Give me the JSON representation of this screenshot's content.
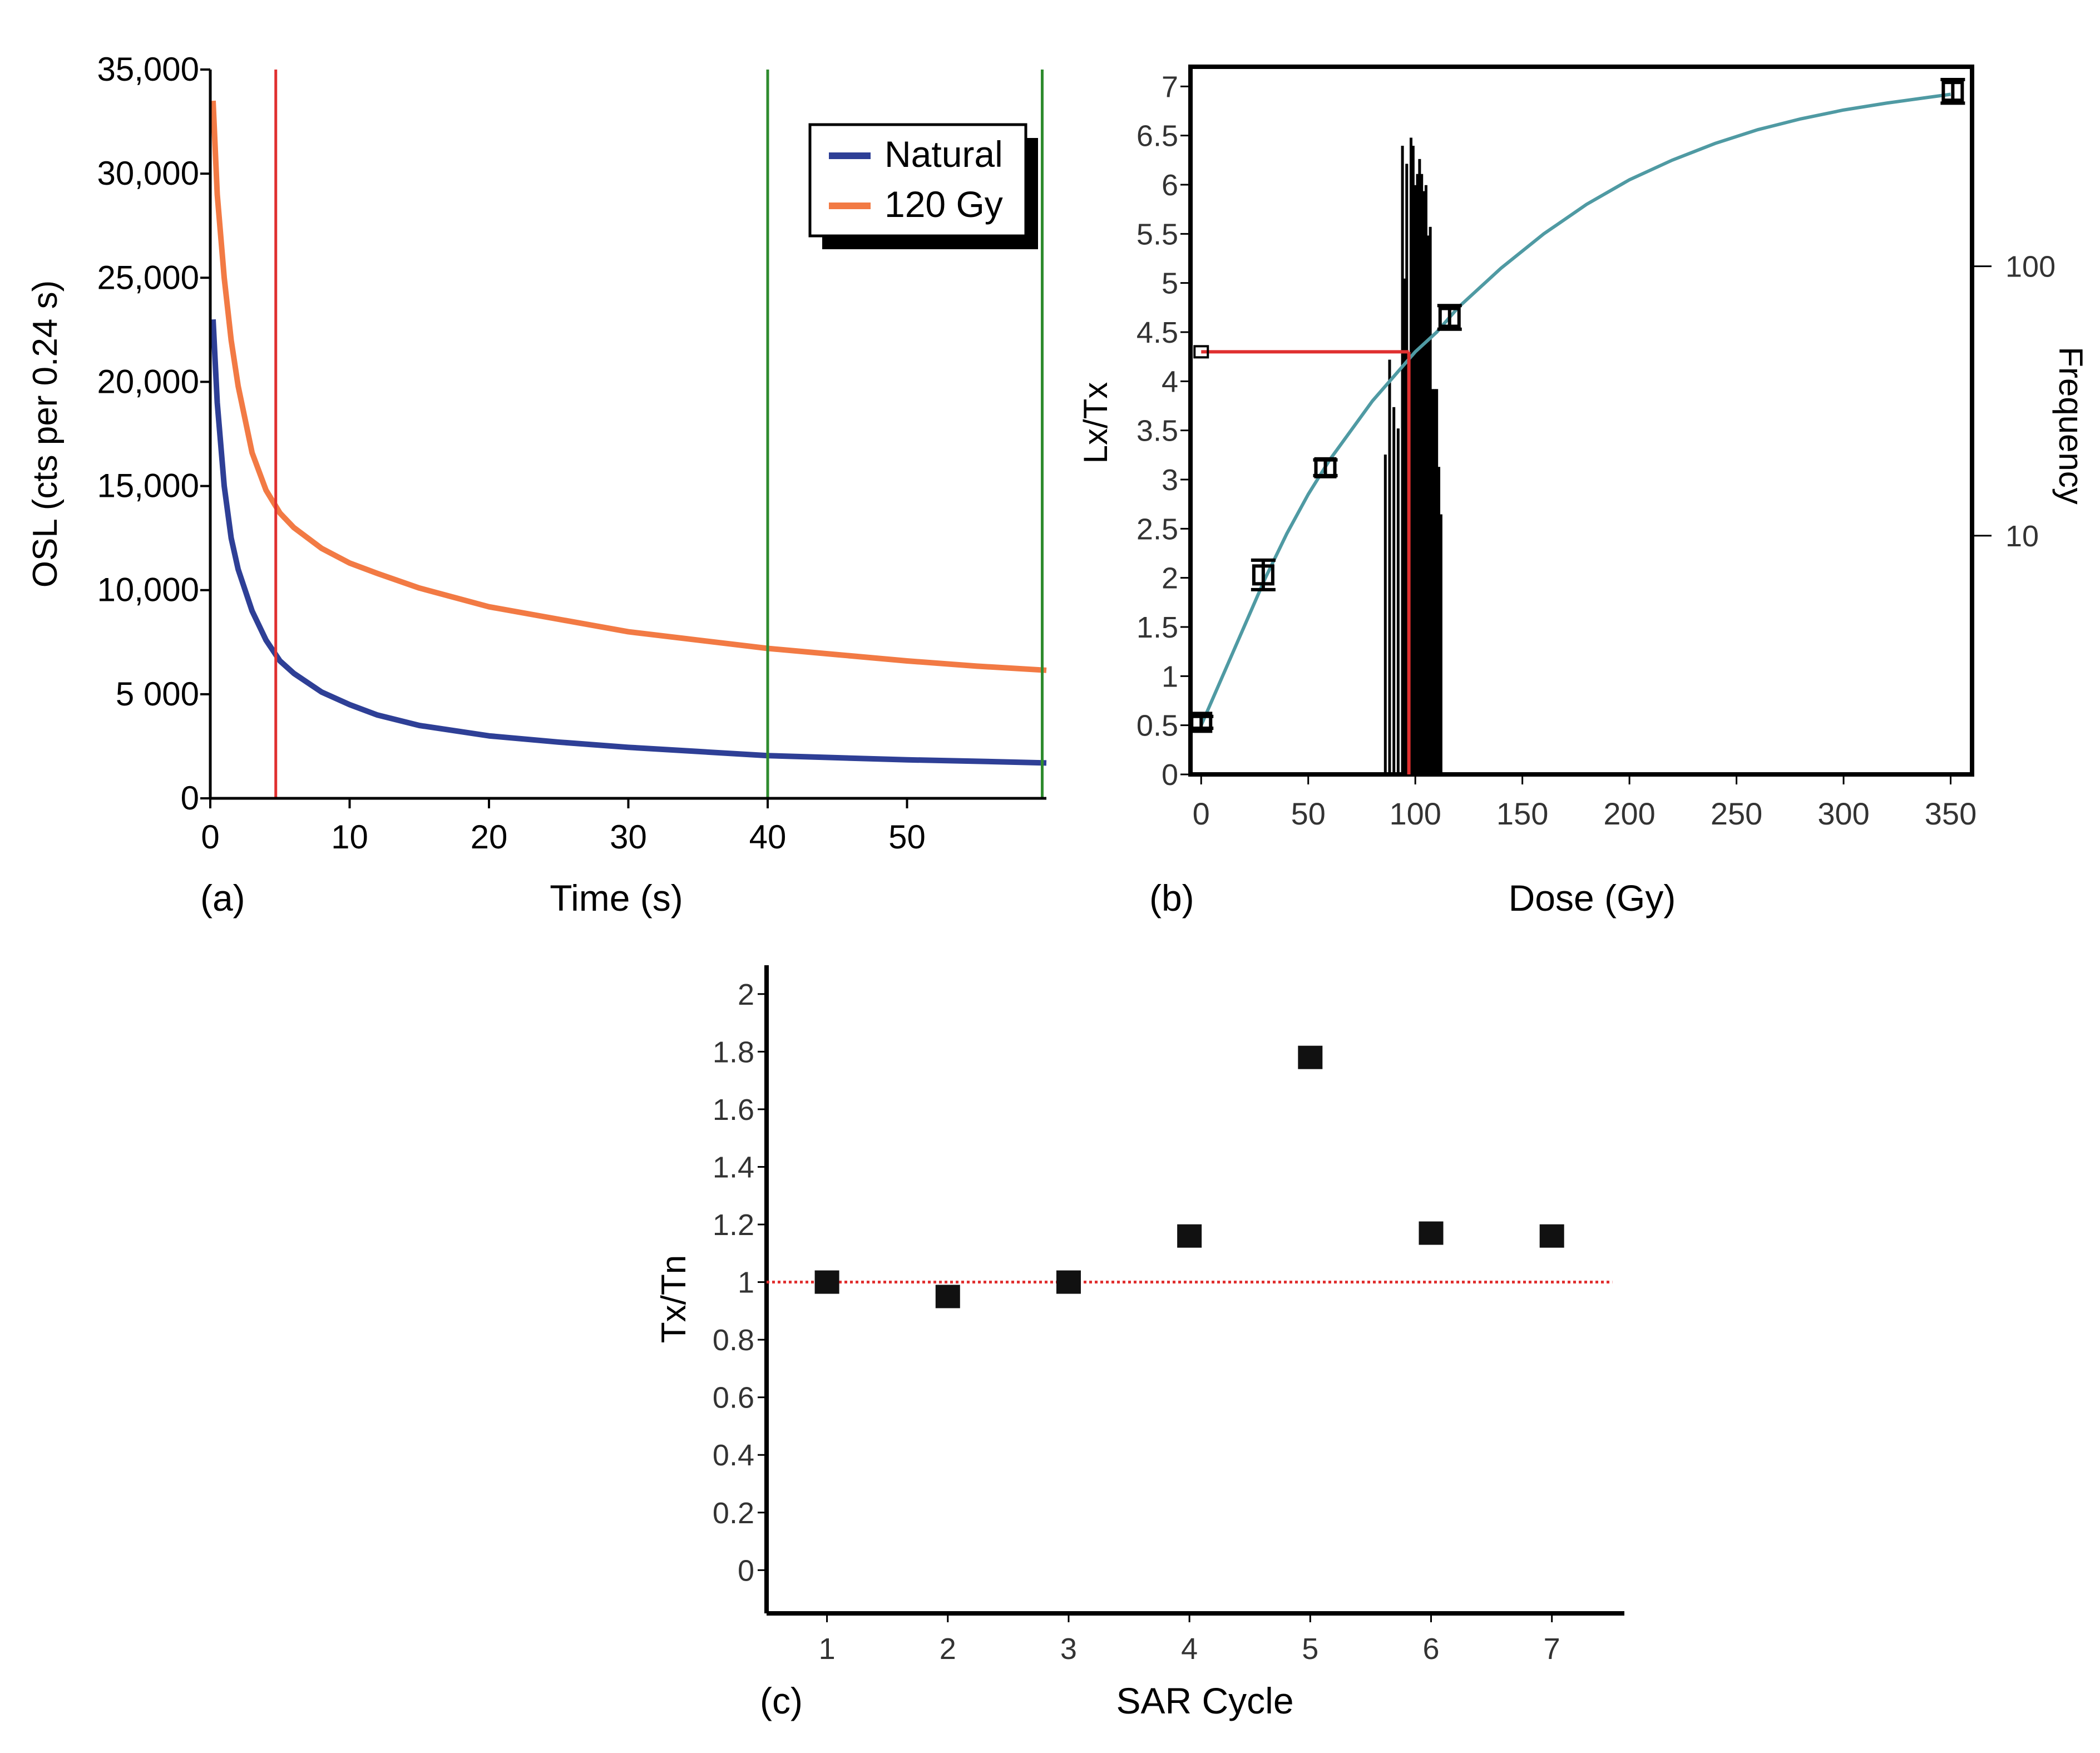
{
  "chart_data": [
    {
      "type": "line",
      "panel_label": "(a)",
      "xlabel": "Time (s)",
      "ylabel": "OSL (cts per 0.24 s)",
      "xlim": [
        0,
        60
      ],
      "ylim": [
        0,
        35000
      ],
      "x_ticks": [
        0,
        10,
        20,
        30,
        40,
        50
      ],
      "x_tick_labels": [
        "0",
        "10",
        "20",
        "30",
        "40",
        "50"
      ],
      "y_ticks": [
        0,
        5000,
        10000,
        15000,
        20000,
        25000,
        30000,
        35000
      ],
      "y_tick_labels": [
        "0",
        "5 000",
        "10,000",
        "15,000",
        "20,000",
        "25,000",
        "30,000",
        "35,000"
      ],
      "legend": {
        "placement": "top-right",
        "entries": [
          "Natural",
          "120 Gy"
        ]
      },
      "series": [
        {
          "name": "Natural",
          "color": "#2e3f96",
          "x": [
            0.2,
            0.5,
            1,
            1.5,
            2,
            3,
            4,
            5,
            6,
            8,
            10,
            12,
            15,
            20,
            25,
            30,
            35,
            40,
            45,
            50,
            55,
            60
          ],
          "y": [
            23000,
            19000,
            15000,
            12500,
            11000,
            9000,
            7600,
            6600,
            6000,
            5100,
            4500,
            4000,
            3500,
            3000,
            2700,
            2450,
            2250,
            2050,
            1950,
            1850,
            1780,
            1700
          ]
        },
        {
          "name": "120 Gy",
          "color": "#f27a44",
          "x": [
            0.2,
            0.5,
            1,
            1.5,
            2,
            3,
            4,
            5,
            6,
            8,
            10,
            12,
            15,
            20,
            25,
            30,
            35,
            40,
            45,
            50,
            55,
            60
          ],
          "y": [
            33500,
            29000,
            25000,
            22000,
            19800,
            16600,
            14800,
            13700,
            13000,
            12000,
            11300,
            10800,
            10100,
            9200,
            8600,
            8000,
            7600,
            7200,
            6900,
            6600,
            6350,
            6150
          ]
        }
      ],
      "vertical_lines": [
        {
          "x": 0,
          "color": "#e03030"
        },
        {
          "x": 4.7,
          "color": "#e03030"
        },
        {
          "x": 40,
          "color": "#2e8b2e"
        },
        {
          "x": 59.7,
          "color": "#2e8b2e"
        }
      ]
    },
    {
      "type": "line",
      "panel_label": "(b)",
      "xlabel": "Dose (Gy)",
      "ylabel": "Lx/Tx",
      "y2label": "Frequency",
      "xlim": [
        -5,
        360
      ],
      "ylim": [
        0,
        7.2
      ],
      "x_ticks": [
        0,
        50,
        100,
        150,
        200,
        250,
        300,
        350
      ],
      "x_tick_labels": [
        "0",
        "50",
        "100",
        "150",
        "200",
        "250",
        "300",
        "350"
      ],
      "y_ticks": [
        0,
        0.5,
        1,
        1.5,
        2,
        2.5,
        3,
        3.5,
        4,
        4.5,
        5,
        5.5,
        6,
        6.5,
        7
      ],
      "y_tick_labels": [
        "0",
        "0.5",
        "1",
        "1.5",
        "2",
        "2.5",
        "3",
        "3.5",
        "4",
        "4.5",
        "5",
        "5.5",
        "6",
        "6.5",
        "7"
      ],
      "y2_scale": "log",
      "y2lim": [
        1.3,
        550
      ],
      "y2_ticks": [
        10,
        100
      ],
      "y2_tick_labels": [
        "10",
        "100"
      ],
      "dose_response_curve": {
        "color": "#4f9aa3",
        "x": [
          0,
          5,
          10,
          20,
          30,
          40,
          50,
          60,
          70,
          80,
          90,
          100,
          110,
          120,
          140,
          160,
          180,
          200,
          220,
          240,
          260,
          280,
          300,
          320,
          340,
          350
        ],
        "y": [
          0.5,
          0.75,
          1.0,
          1.5,
          2.0,
          2.45,
          2.85,
          3.2,
          3.5,
          3.8,
          4.05,
          4.3,
          4.5,
          4.75,
          5.15,
          5.5,
          5.8,
          6.05,
          6.25,
          6.42,
          6.56,
          6.67,
          6.76,
          6.83,
          6.89,
          6.92
        ]
      },
      "measured_points": {
        "x": [
          0,
          29,
          58,
          116,
          351
        ],
        "y": [
          0.53,
          2.03,
          3.12,
          4.65,
          6.95
        ],
        "err": [
          0.06,
          0.15,
          0.08,
          0.12,
          0.12
        ]
      },
      "natural_signal": {
        "x": 0,
        "y": 4.3,
        "interpolated_dose_gy": 97
      },
      "histogram": {
        "color": "#000000",
        "dose": [
          86,
          88,
          90,
          92,
          94,
          95,
          96,
          97,
          98,
          99,
          100,
          101,
          102,
          103,
          104,
          105,
          106,
          107,
          108,
          109,
          110,
          111,
          112
        ],
        "frequency": [
          20,
          45,
          30,
          25,
          280,
          90,
          240,
          20,
          300,
          280,
          200,
          220,
          250,
          220,
          190,
          200,
          130,
          140,
          35,
          35,
          35,
          18,
          12
        ]
      }
    },
    {
      "type": "scatter",
      "panel_label": "(c)",
      "xlabel": "SAR Cycle",
      "ylabel": "Tx/Tn",
      "xlim": [
        0.5,
        7.6
      ],
      "ylim": [
        -0.15,
        2.1
      ],
      "x_ticks": [
        1,
        2,
        3,
        4,
        5,
        6,
        7
      ],
      "x_tick_labels": [
        "1",
        "2",
        "3",
        "4",
        "5",
        "6",
        "7"
      ],
      "y_ticks": [
        0,
        0.2,
        0.4,
        0.6,
        0.8,
        1,
        1.2,
        1.4,
        1.6,
        1.8,
        2
      ],
      "y_tick_labels": [
        "0",
        "0.2",
        "0.4",
        "0.6",
        "0.8",
        "1",
        "1.2",
        "1.4",
        "1.6",
        "1.8",
        "2"
      ],
      "x": [
        1,
        2,
        3,
        4,
        5,
        6,
        7
      ],
      "y": [
        1.0,
        0.95,
        1.0,
        1.16,
        1.78,
        1.17,
        1.16
      ],
      "reference_line": {
        "y": 1.0,
        "color": "#e03030",
        "style": "dotted"
      }
    }
  ]
}
